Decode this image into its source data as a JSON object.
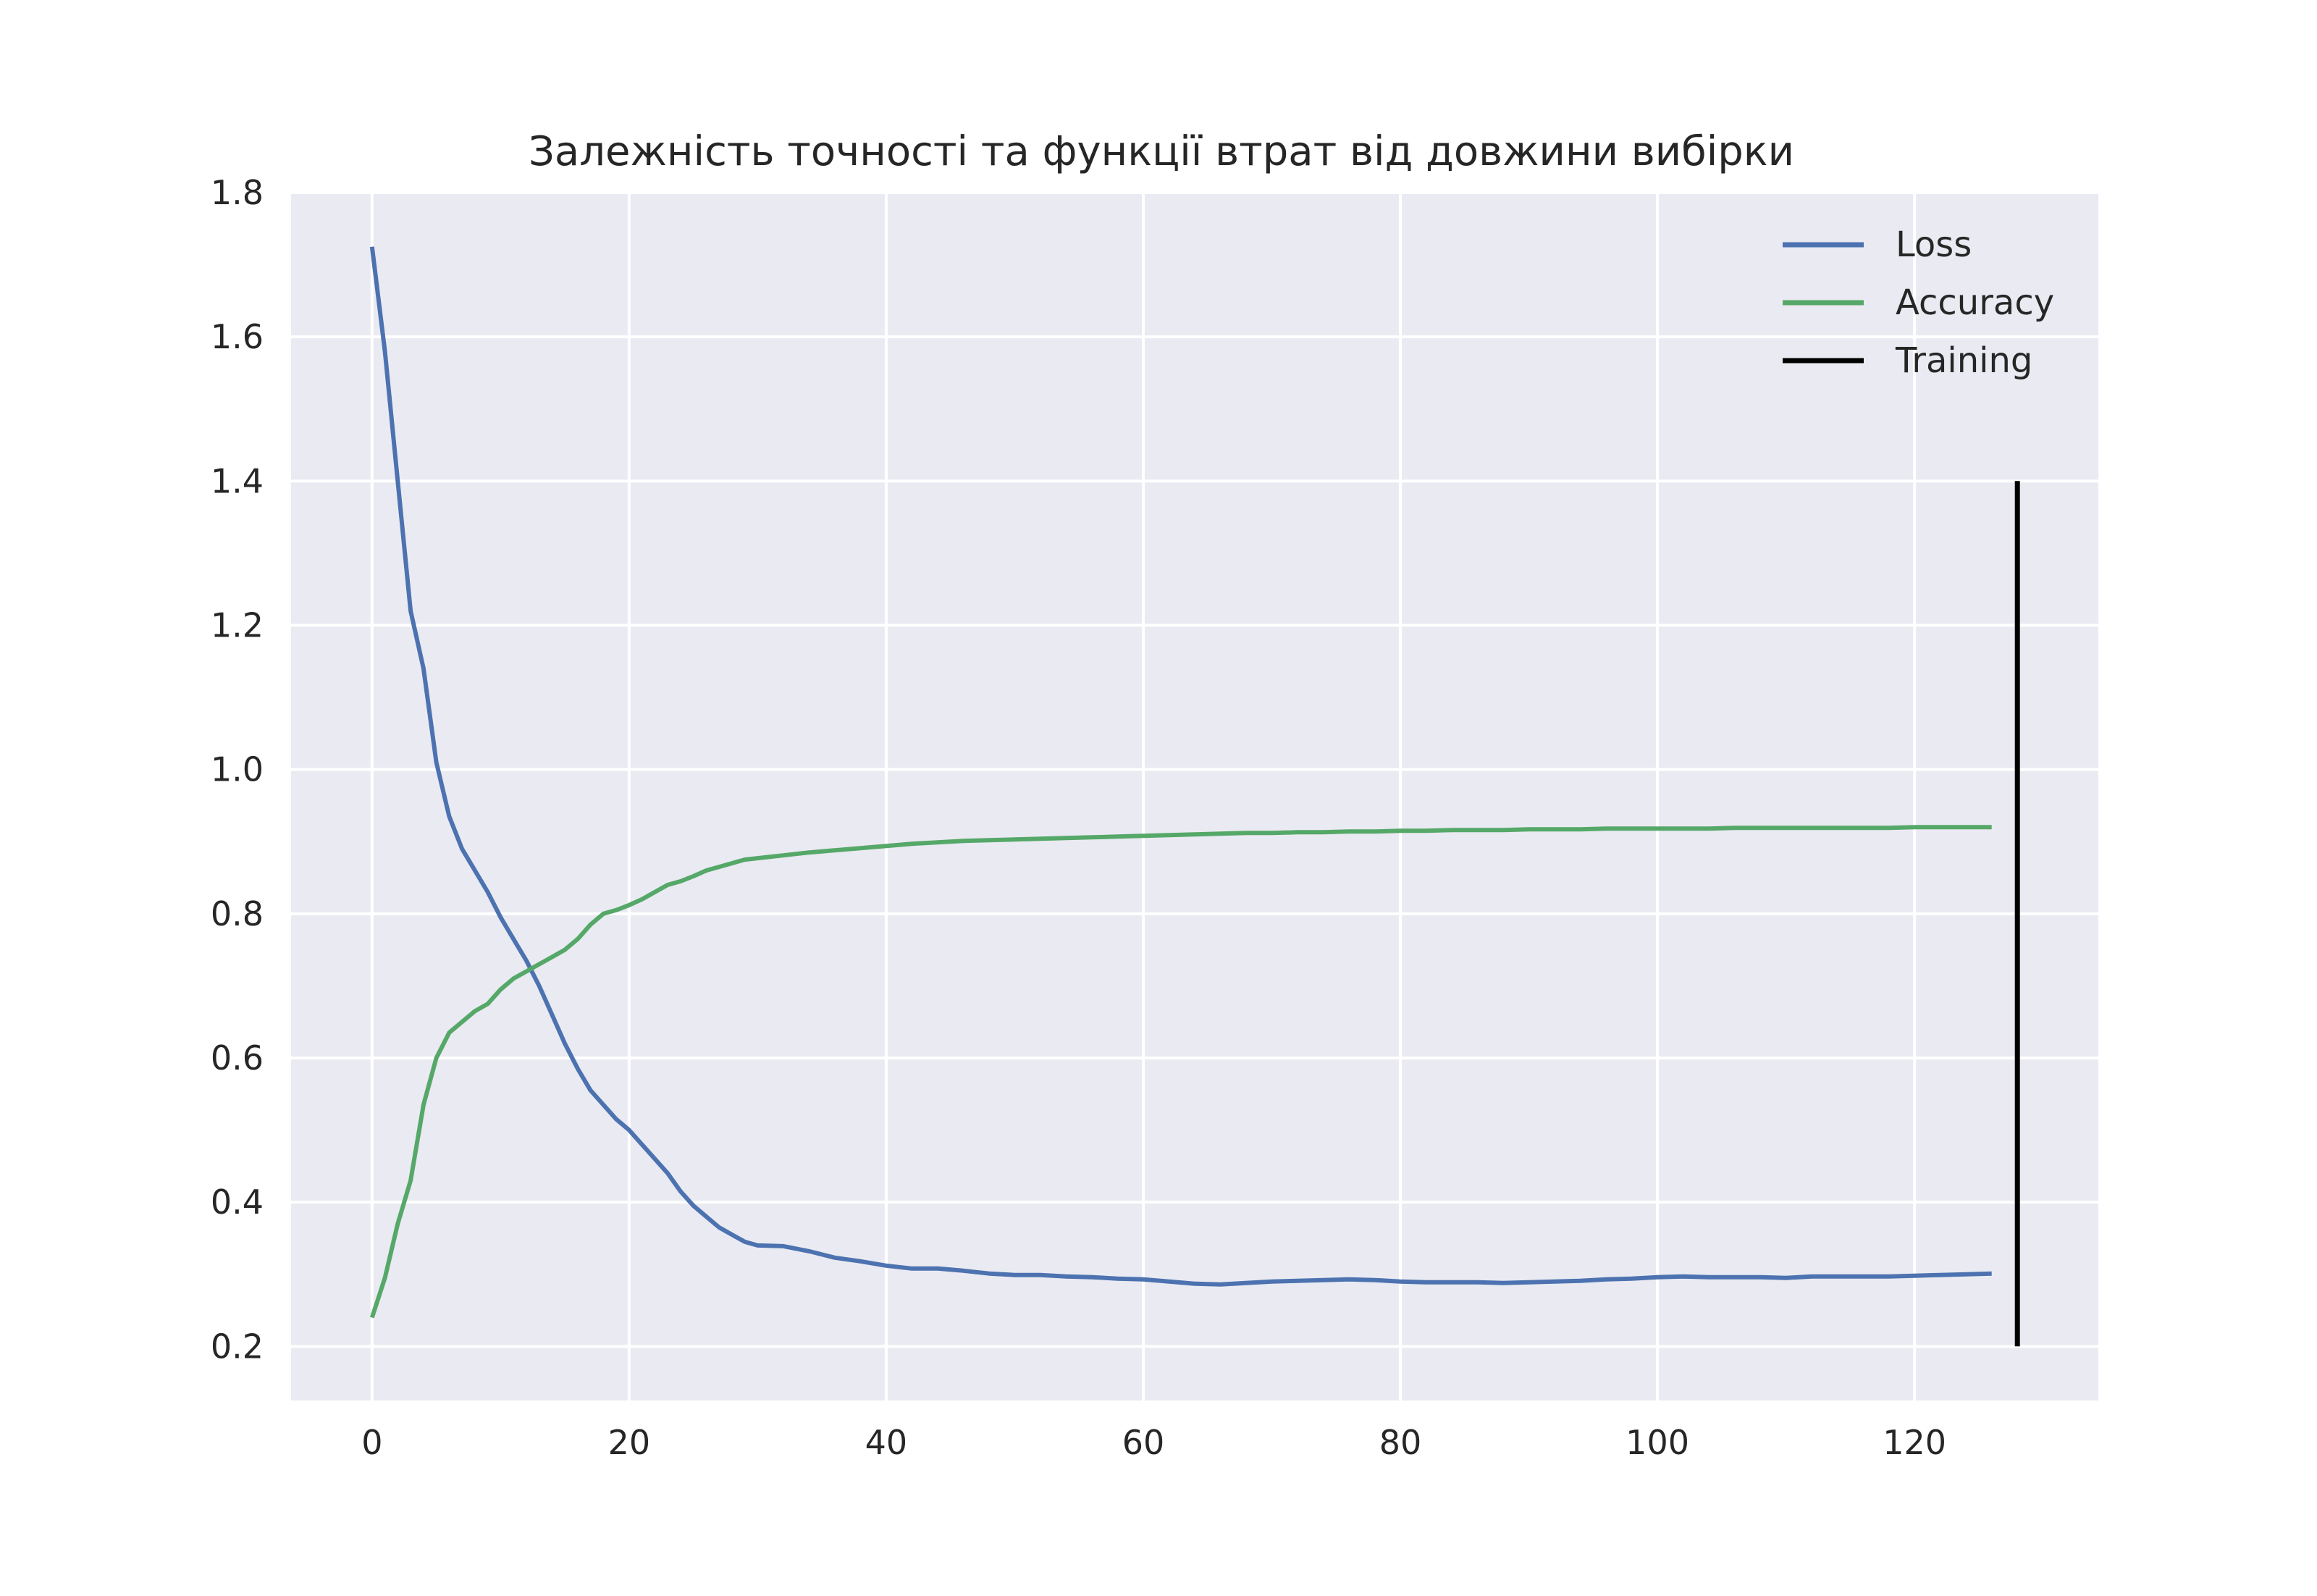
{
  "chart_data": {
    "type": "line",
    "title": "Залежність точності та функції втрат від довжини вибірки",
    "xlabel": "",
    "ylabel": "",
    "xlim": [
      -6.3,
      134.3
    ],
    "ylim": [
      0.125,
      1.8
    ],
    "x_ticks": [
      0,
      20,
      40,
      60,
      80,
      100,
      120
    ],
    "y_ticks": [
      0.2,
      0.4,
      0.6,
      0.8,
      1.0,
      1.2,
      1.4,
      1.6,
      1.8
    ],
    "x_tick_labels": [
      "0",
      "20",
      "40",
      "60",
      "80",
      "100",
      "120"
    ],
    "y_tick_labels": [
      "0.2",
      "0.4",
      "0.6",
      "0.8",
      "1.0",
      "1.2",
      "1.4",
      "1.6",
      "1.8"
    ],
    "grid": true,
    "legend_position": "top-right",
    "colors": {
      "background": "#eaeaf2",
      "grid": "#ffffff",
      "loss": "#4c72b0",
      "accuracy": "#55a868",
      "training": "#000000"
    },
    "series": [
      {
        "name": "Loss",
        "color": "#4c72b0",
        "points": [
          [
            0,
            1.725
          ],
          [
            1,
            1.58
          ],
          [
            2,
            1.4
          ],
          [
            3,
            1.22
          ],
          [
            4,
            1.14
          ],
          [
            5,
            1.01
          ],
          [
            6,
            0.935
          ],
          [
            7,
            0.89
          ],
          [
            8,
            0.86
          ],
          [
            9,
            0.83
          ],
          [
            10,
            0.795
          ],
          [
            11,
            0.765
          ],
          [
            12,
            0.735
          ],
          [
            13,
            0.7
          ],
          [
            14,
            0.66
          ],
          [
            15,
            0.62
          ],
          [
            16,
            0.585
          ],
          [
            17,
            0.555
          ],
          [
            18,
            0.535
          ],
          [
            19,
            0.515
          ],
          [
            20,
            0.5
          ],
          [
            21,
            0.48
          ],
          [
            22,
            0.46
          ],
          [
            23,
            0.44
          ],
          [
            24,
            0.415
          ],
          [
            25,
            0.395
          ],
          [
            26,
            0.38
          ],
          [
            27,
            0.365
          ],
          [
            28,
            0.355
          ],
          [
            29,
            0.345
          ],
          [
            30,
            0.34
          ],
          [
            32,
            0.339
          ],
          [
            34,
            0.332
          ],
          [
            36,
            0.323
          ],
          [
            38,
            0.318
          ],
          [
            40,
            0.312
          ],
          [
            42,
            0.308
          ],
          [
            44,
            0.308
          ],
          [
            46,
            0.305
          ],
          [
            48,
            0.301
          ],
          [
            50,
            0.299
          ],
          [
            52,
            0.299
          ],
          [
            54,
            0.297
          ],
          [
            56,
            0.296
          ],
          [
            58,
            0.294
          ],
          [
            60,
            0.293
          ],
          [
            62,
            0.29
          ],
          [
            64,
            0.287
          ],
          [
            66,
            0.286
          ],
          [
            68,
            0.288
          ],
          [
            70,
            0.29
          ],
          [
            72,
            0.291
          ],
          [
            74,
            0.292
          ],
          [
            76,
            0.293
          ],
          [
            78,
            0.292
          ],
          [
            80,
            0.29
          ],
          [
            82,
            0.289
          ],
          [
            84,
            0.289
          ],
          [
            86,
            0.289
          ],
          [
            88,
            0.288
          ],
          [
            90,
            0.289
          ],
          [
            92,
            0.29
          ],
          [
            94,
            0.291
          ],
          [
            96,
            0.293
          ],
          [
            98,
            0.294
          ],
          [
            100,
            0.296
          ],
          [
            102,
            0.297
          ],
          [
            104,
            0.296
          ],
          [
            106,
            0.296
          ],
          [
            108,
            0.296
          ],
          [
            110,
            0.295
          ],
          [
            112,
            0.297
          ],
          [
            114,
            0.297
          ],
          [
            116,
            0.297
          ],
          [
            118,
            0.297
          ],
          [
            120,
            0.298
          ],
          [
            122,
            0.299
          ],
          [
            124,
            0.3
          ],
          [
            126,
            0.301
          ]
        ]
      },
      {
        "name": "Accuracy",
        "color": "#55a868",
        "points": [
          [
            0,
            0.24
          ],
          [
            1,
            0.295
          ],
          [
            2,
            0.37
          ],
          [
            3,
            0.43
          ],
          [
            4,
            0.535
          ],
          [
            5,
            0.6
          ],
          [
            6,
            0.635
          ],
          [
            7,
            0.65
          ],
          [
            8,
            0.665
          ],
          [
            9,
            0.675
          ],
          [
            10,
            0.695
          ],
          [
            11,
            0.71
          ],
          [
            12,
            0.72
          ],
          [
            13,
            0.73
          ],
          [
            14,
            0.74
          ],
          [
            15,
            0.75
          ],
          [
            16,
            0.765
          ],
          [
            17,
            0.785
          ],
          [
            18,
            0.8
          ],
          [
            19,
            0.805
          ],
          [
            20,
            0.812
          ],
          [
            21,
            0.82
          ],
          [
            22,
            0.83
          ],
          [
            23,
            0.84
          ],
          [
            24,
            0.845
          ],
          [
            25,
            0.852
          ],
          [
            26,
            0.86
          ],
          [
            27,
            0.865
          ],
          [
            28,
            0.87
          ],
          [
            29,
            0.875
          ],
          [
            30,
            0.877
          ],
          [
            32,
            0.881
          ],
          [
            34,
            0.885
          ],
          [
            36,
            0.888
          ],
          [
            38,
            0.891
          ],
          [
            40,
            0.894
          ],
          [
            42,
            0.897
          ],
          [
            44,
            0.899
          ],
          [
            46,
            0.901
          ],
          [
            48,
            0.902
          ],
          [
            50,
            0.903
          ],
          [
            52,
            0.904
          ],
          [
            54,
            0.905
          ],
          [
            56,
            0.906
          ],
          [
            58,
            0.907
          ],
          [
            60,
            0.908
          ],
          [
            62,
            0.909
          ],
          [
            64,
            0.91
          ],
          [
            66,
            0.911
          ],
          [
            68,
            0.912
          ],
          [
            70,
            0.912
          ],
          [
            72,
            0.913
          ],
          [
            74,
            0.913
          ],
          [
            76,
            0.914
          ],
          [
            78,
            0.914
          ],
          [
            80,
            0.915
          ],
          [
            82,
            0.915
          ],
          [
            84,
            0.916
          ],
          [
            86,
            0.916
          ],
          [
            88,
            0.916
          ],
          [
            90,
            0.917
          ],
          [
            92,
            0.917
          ],
          [
            94,
            0.917
          ],
          [
            96,
            0.918
          ],
          [
            98,
            0.918
          ],
          [
            100,
            0.918
          ],
          [
            102,
            0.918
          ],
          [
            104,
            0.918
          ],
          [
            106,
            0.919
          ],
          [
            108,
            0.919
          ],
          [
            110,
            0.919
          ],
          [
            112,
            0.919
          ],
          [
            114,
            0.919
          ],
          [
            116,
            0.919
          ],
          [
            118,
            0.919
          ],
          [
            120,
            0.92
          ],
          [
            122,
            0.92
          ],
          [
            124,
            0.92
          ],
          [
            126,
            0.92
          ]
        ]
      },
      {
        "name": "Training",
        "color": "#000000",
        "points": [
          [
            128,
            0.2
          ],
          [
            128,
            1.4
          ]
        ]
      }
    ]
  }
}
